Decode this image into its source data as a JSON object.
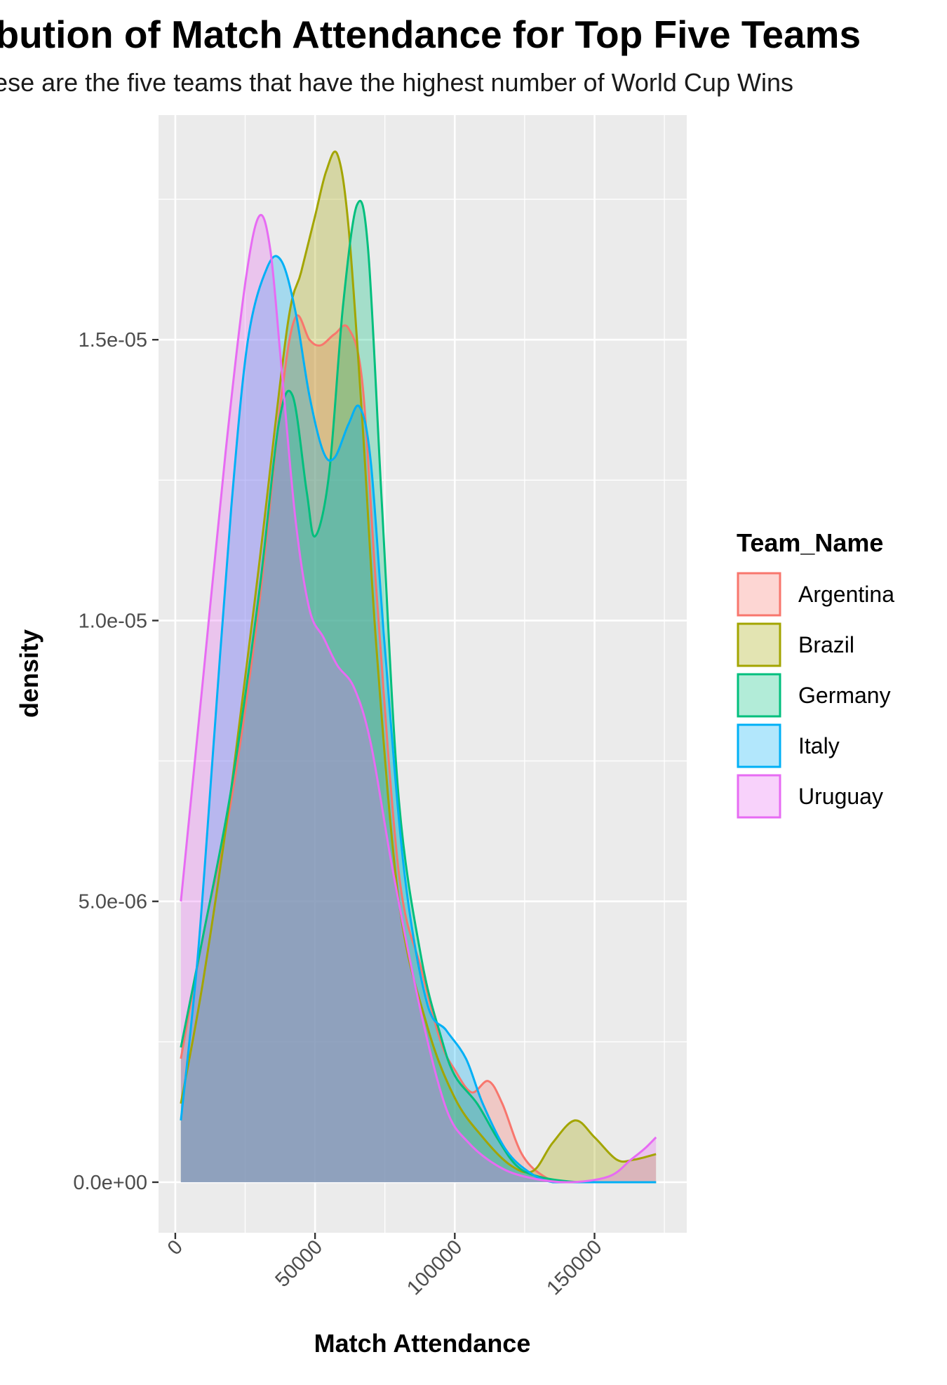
{
  "chart_data": {
    "type": "area",
    "subtype": "density",
    "title": "Distribution of Match Attendance for Top Five Teams",
    "subtitle": "These are the five teams that have the highest number of World Cup Wins",
    "xlabel": "Match Attendance",
    "ylabel": "density",
    "xlim": [
      -6000,
      183000
    ],
    "ylim": [
      -9e-07,
      1.9e-05
    ],
    "x_ticks": [
      0,
      50000,
      100000,
      150000
    ],
    "x_tick_labels": [
      "0",
      "50000",
      "100000",
      "150000"
    ],
    "y_ticks": [
      0,
      5e-06,
      1e-05,
      1.5e-05
    ],
    "y_tick_labels": [
      "0.0e+00",
      "5.0e-06",
      "1.0e-05",
      "1.5e-05"
    ],
    "grid": true,
    "legend_title": "Team_Name",
    "legend_position": "right",
    "fill_opacity": 0.3,
    "series": [
      {
        "name": "Argentina",
        "color": "#F8766D",
        "points": [
          [
            2000,
            2.2e-06
          ],
          [
            10000,
            4.4e-06
          ],
          [
            20000,
            6.8e-06
          ],
          [
            30000,
            1.03e-05
          ],
          [
            38000,
            1.4e-05
          ],
          [
            43000,
            1.54e-05
          ],
          [
            48000,
            1.5e-05
          ],
          [
            52000,
            1.49e-05
          ],
          [
            57000,
            1.51e-05
          ],
          [
            62000,
            1.52e-05
          ],
          [
            67000,
            1.42e-05
          ],
          [
            72000,
            1.05e-05
          ],
          [
            80000,
            5.5e-06
          ],
          [
            88000,
            3.8e-06
          ],
          [
            95000,
            2.5e-06
          ],
          [
            100000,
            2e-06
          ],
          [
            106000,
            1.6e-06
          ],
          [
            112000,
            1.8e-06
          ],
          [
            117000,
            1.4e-06
          ],
          [
            124000,
            5e-07
          ],
          [
            132000,
            1e-07
          ],
          [
            140000,
            0.0
          ],
          [
            155000,
            0.0
          ],
          [
            172000,
            0.0
          ]
        ]
      },
      {
        "name": "Brazil",
        "color": "#A3A500",
        "points": [
          [
            2000,
            1.4e-06
          ],
          [
            10000,
            3.6e-06
          ],
          [
            20000,
            7e-06
          ],
          [
            30000,
            1.1e-05
          ],
          [
            40000,
            1.52e-05
          ],
          [
            45000,
            1.62e-05
          ],
          [
            50000,
            1.72e-05
          ],
          [
            54000,
            1.8e-05
          ],
          [
            58000,
            1.83e-05
          ],
          [
            62000,
            1.7e-05
          ],
          [
            67000,
            1.35e-05
          ],
          [
            72000,
            9.5e-06
          ],
          [
            80000,
            5e-06
          ],
          [
            90000,
            2.8e-06
          ],
          [
            100000,
            1.5e-06
          ],
          [
            110000,
            8e-07
          ],
          [
            120000,
            3e-07
          ],
          [
            128000,
            2e-07
          ],
          [
            135000,
            7e-07
          ],
          [
            143000,
            1.1e-06
          ],
          [
            150000,
            8e-07
          ],
          [
            158000,
            4e-07
          ],
          [
            164000,
            4e-07
          ],
          [
            172000,
            5e-07
          ]
        ]
      },
      {
        "name": "Germany",
        "color": "#00BF7D",
        "points": [
          [
            2000,
            2.4e-06
          ],
          [
            10000,
            4.4e-06
          ],
          [
            20000,
            7e-06
          ],
          [
            30000,
            1.05e-05
          ],
          [
            37000,
            1.35e-05
          ],
          [
            42000,
            1.4e-05
          ],
          [
            47000,
            1.23e-05
          ],
          [
            50000,
            1.15e-05
          ],
          [
            55000,
            1.26e-05
          ],
          [
            60000,
            1.56e-05
          ],
          [
            65000,
            1.74e-05
          ],
          [
            69000,
            1.66e-05
          ],
          [
            74000,
            1.2e-05
          ],
          [
            80000,
            6.8e-06
          ],
          [
            88000,
            4e-06
          ],
          [
            95000,
            2.6e-06
          ],
          [
            100000,
            1.9e-06
          ],
          [
            108000,
            1.4e-06
          ],
          [
            115000,
            8e-07
          ],
          [
            122000,
            3e-07
          ],
          [
            130000,
            1e-07
          ],
          [
            145000,
            0.0
          ],
          [
            172000,
            0.0
          ]
        ]
      },
      {
        "name": "Italy",
        "color": "#00B0F6",
        "points": [
          [
            2000,
            1.1e-06
          ],
          [
            8000,
            4e-06
          ],
          [
            14000,
            8e-06
          ],
          [
            20000,
            1.2e-05
          ],
          [
            26000,
            1.5e-05
          ],
          [
            33000,
            1.63e-05
          ],
          [
            38000,
            1.64e-05
          ],
          [
            43000,
            1.55e-05
          ],
          [
            48000,
            1.4e-05
          ],
          [
            53000,
            1.3e-05
          ],
          [
            57000,
            1.29e-05
          ],
          [
            62000,
            1.35e-05
          ],
          [
            66000,
            1.38e-05
          ],
          [
            70000,
            1.28e-05
          ],
          [
            75000,
            9.5e-06
          ],
          [
            82000,
            5.5e-06
          ],
          [
            90000,
            3.2e-06
          ],
          [
            97000,
            2.7e-06
          ],
          [
            104000,
            2.2e-06
          ],
          [
            110000,
            1.4e-06
          ],
          [
            118000,
            6e-07
          ],
          [
            126000,
            2e-07
          ],
          [
            135000,
            0.0
          ],
          [
            150000,
            0.0
          ],
          [
            172000,
            0.0
          ]
        ]
      },
      {
        "name": "Uruguay",
        "color": "#E76BF3",
        "points": [
          [
            2000,
            5e-06
          ],
          [
            10000,
            9e-06
          ],
          [
            18000,
            1.3e-05
          ],
          [
            25000,
            1.6e-05
          ],
          [
            30000,
            1.72e-05
          ],
          [
            34000,
            1.66e-05
          ],
          [
            38000,
            1.45e-05
          ],
          [
            43000,
            1.18e-05
          ],
          [
            48000,
            1.02e-05
          ],
          [
            53000,
            9.7e-06
          ],
          [
            58000,
            9.2e-06
          ],
          [
            64000,
            8.8e-06
          ],
          [
            70000,
            7.8e-06
          ],
          [
            78000,
            5.5e-06
          ],
          [
            88000,
            3e-06
          ],
          [
            97000,
            1.3e-06
          ],
          [
            105000,
            7e-07
          ],
          [
            115000,
            3e-07
          ],
          [
            125000,
            1e-07
          ],
          [
            140000,
            0.0
          ],
          [
            155000,
            1e-07
          ],
          [
            163000,
            4e-07
          ],
          [
            168000,
            6e-07
          ],
          [
            172000,
            8e-07
          ]
        ]
      }
    ]
  }
}
